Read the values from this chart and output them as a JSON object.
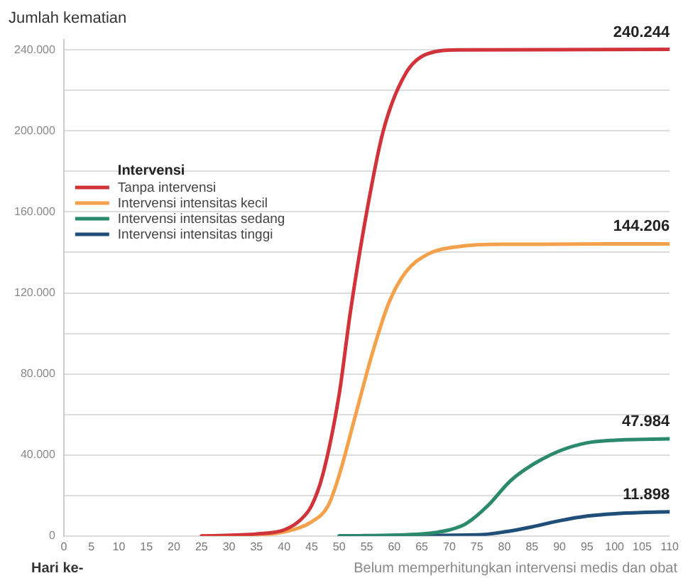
{
  "chart_data": {
    "type": "line",
    "ylabel": "Jumlah kematian",
    "xlabel": "Hari ke-",
    "legend_title": "Intervensi",
    "legend": "top left",
    "grid": "y",
    "marker": "none",
    "line_style": "solid",
    "annotations": [
      "Belum memperhitungkan intervensi medis dan obat"
    ],
    "xlim": [
      0,
      110
    ],
    "xticks": [
      0,
      5,
      10,
      15,
      20,
      25,
      30,
      35,
      40,
      45,
      50,
      55,
      60,
      65,
      70,
      75,
      80,
      85,
      90,
      95,
      100,
      105,
      110
    ],
    "ylim": [
      0,
      245000
    ],
    "yticks": [
      {
        "value": 0,
        "label": "0"
      },
      {
        "value": 20000,
        "label": null
      },
      {
        "value": 40000,
        "label": "40.000"
      },
      {
        "value": 60000,
        "label": null
      },
      {
        "value": 80000,
        "label": "80.000"
      },
      {
        "value": 100000,
        "label": null
      },
      {
        "value": 120000,
        "label": "120.000"
      },
      {
        "value": 140000,
        "label": null
      },
      {
        "value": 160000,
        "label": "160.000"
      },
      {
        "value": 180000,
        "label": null
      },
      {
        "value": 200000,
        "label": "200.000"
      },
      {
        "value": 220000,
        "label": null
      },
      {
        "value": 240000,
        "label": "240.000"
      }
    ],
    "series": [
      {
        "name": "Tanpa intervensi",
        "color": "#d0343a",
        "x": [
          25,
          35,
          40,
          43,
          45,
          47,
          50,
          52,
          55,
          58,
          62,
          66,
          72,
          110
        ],
        "values": [
          0,
          1000,
          3000,
          8000,
          15000,
          30000,
          70000,
          110000,
          160000,
          200000,
          228000,
          238000,
          240000,
          240244
        ],
        "value_labels": [
          null,
          null,
          null,
          null,
          null,
          null,
          null,
          null,
          null,
          null,
          null,
          null,
          null,
          "240.244"
        ]
      },
      {
        "name": "Intervensi intensitas kecil",
        "color": "#f5a04a",
        "x": [
          25,
          35,
          40,
          45,
          48,
          50,
          53,
          56,
          59,
          62,
          66,
          72,
          80,
          110
        ],
        "values": [
          0,
          500,
          2000,
          7000,
          15000,
          30000,
          60000,
          90000,
          115000,
          130000,
          139000,
          143000,
          144000,
          144206
        ],
        "value_labels": [
          null,
          null,
          null,
          null,
          null,
          null,
          null,
          null,
          null,
          null,
          null,
          null,
          null,
          "144.206"
        ]
      },
      {
        "name": "Intervensi intensitas sedang",
        "color": "#2a8a6b",
        "x": [
          50,
          65,
          70,
          73,
          77,
          81,
          85,
          90,
          95,
          100,
          110
        ],
        "values": [
          0,
          1000,
          3000,
          6000,
          15000,
          27000,
          35000,
          42000,
          46000,
          47300,
          47984
        ],
        "value_labels": [
          null,
          null,
          null,
          null,
          null,
          null,
          null,
          null,
          null,
          null,
          "47.984"
        ]
      },
      {
        "name": "Intervensi intensitas tinggi",
        "color": "#1f4e79",
        "x": [
          50,
          75,
          80,
          85,
          90,
          95,
          100,
          105,
          110
        ],
        "values": [
          0,
          500,
          2000,
          4500,
          7500,
          9800,
          11000,
          11600,
          11898
        ],
        "value_labels": [
          null,
          null,
          null,
          null,
          null,
          null,
          null,
          null,
          "11.898"
        ]
      }
    ]
  }
}
